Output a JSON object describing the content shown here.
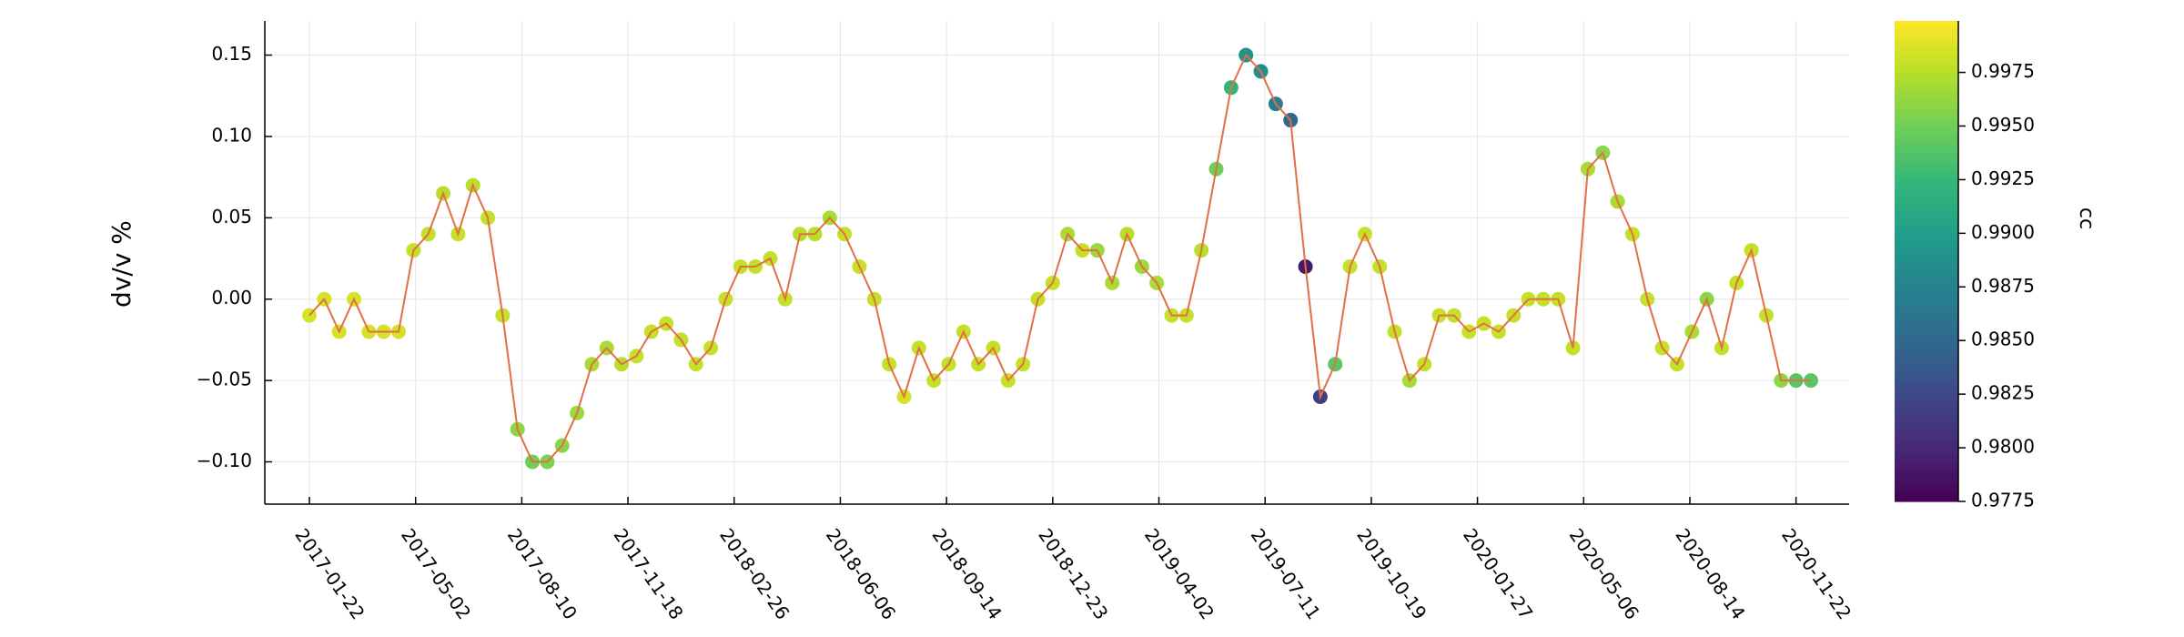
{
  "chart_data": {
    "type": "scatter",
    "ylabel": "dv/v %",
    "colorbar_label": "cc",
    "colormap": "viridis",
    "line_color": "#e26f46",
    "grid": true,
    "x": [
      "2017-01-22",
      "2017-02-05",
      "2017-02-19",
      "2017-03-05",
      "2017-03-19",
      "2017-04-02",
      "2017-04-16",
      "2017-04-30",
      "2017-05-14",
      "2017-05-28",
      "2017-06-11",
      "2017-06-25",
      "2017-07-09",
      "2017-07-23",
      "2017-08-06",
      "2017-08-20",
      "2017-09-03",
      "2017-09-17",
      "2017-10-01",
      "2017-10-15",
      "2017-10-29",
      "2017-11-12",
      "2017-11-26",
      "2017-12-10",
      "2017-12-24",
      "2018-01-07",
      "2018-01-21",
      "2018-02-04",
      "2018-02-18",
      "2018-03-04",
      "2018-03-18",
      "2018-04-01",
      "2018-04-15",
      "2018-04-29",
      "2018-05-13",
      "2018-05-27",
      "2018-06-10",
      "2018-06-24",
      "2018-07-08",
      "2018-07-22",
      "2018-08-05",
      "2018-08-19",
      "2018-09-02",
      "2018-09-16",
      "2018-09-30",
      "2018-10-14",
      "2018-10-28",
      "2018-11-11",
      "2018-11-25",
      "2018-12-09",
      "2018-12-23",
      "2019-01-06",
      "2019-01-20",
      "2019-02-03",
      "2019-02-17",
      "2019-03-03",
      "2019-03-17",
      "2019-03-31",
      "2019-04-14",
      "2019-04-28",
      "2019-05-12",
      "2019-05-26",
      "2019-06-09",
      "2019-06-23",
      "2019-07-07",
      "2019-07-21",
      "2019-08-04",
      "2019-08-18",
      "2019-09-01",
      "2019-09-15",
      "2019-09-29",
      "2019-10-13",
      "2019-10-27",
      "2019-11-10",
      "2019-11-24",
      "2019-12-08",
      "2019-12-22",
      "2020-01-05",
      "2020-01-19",
      "2020-02-02",
      "2020-02-16",
      "2020-03-01",
      "2020-03-15",
      "2020-03-29",
      "2020-04-12",
      "2020-04-26",
      "2020-05-10",
      "2020-05-24",
      "2020-06-07",
      "2020-06-21",
      "2020-07-05",
      "2020-07-19",
      "2020-08-02",
      "2020-08-16",
      "2020-08-30",
      "2020-09-13",
      "2020-09-27",
      "2020-10-11",
      "2020-10-25",
      "2020-11-08",
      "2020-11-22",
      "2020-12-06"
    ],
    "values": [
      -0.01,
      0.0,
      -0.02,
      0.0,
      -0.02,
      -0.02,
      -0.02,
      0.03,
      0.04,
      0.065,
      0.04,
      0.07,
      0.05,
      -0.01,
      -0.08,
      -0.1,
      -0.1,
      -0.09,
      -0.07,
      -0.04,
      -0.03,
      -0.04,
      -0.035,
      -0.02,
      -0.015,
      -0.025,
      -0.04,
      -0.03,
      0.0,
      0.02,
      0.02,
      0.025,
      0.0,
      0.04,
      0.04,
      0.05,
      0.04,
      0.02,
      0.0,
      -0.04,
      -0.06,
      -0.03,
      -0.05,
      -0.04,
      -0.02,
      -0.04,
      -0.03,
      -0.05,
      -0.04,
      0.0,
      0.01,
      0.04,
      0.03,
      0.03,
      0.01,
      0.04,
      0.02,
      0.01,
      -0.01,
      -0.01,
      0.03,
      0.08,
      0.13,
      0.15,
      0.14,
      0.12,
      0.11,
      0.02,
      -0.06,
      -0.04,
      0.02,
      0.04,
      0.02,
      -0.02,
      -0.05,
      -0.04,
      -0.01,
      -0.01,
      -0.02,
      -0.015,
      -0.02,
      -0.01,
      0.0,
      0.0,
      0.0,
      -0.03,
      0.08,
      0.09,
      0.06,
      0.04,
      0.0,
      -0.03,
      -0.04,
      -0.02,
      0.0,
      -0.03,
      0.01,
      0.03,
      -0.01,
      -0.05,
      -0.05,
      -0.05
    ],
    "cc": [
      0.9985,
      0.9985,
      0.9985,
      0.9985,
      0.9985,
      0.9985,
      0.9985,
      0.998,
      0.998,
      0.9975,
      0.998,
      0.9975,
      0.998,
      0.998,
      0.996,
      0.995,
      0.9955,
      0.996,
      0.9965,
      0.997,
      0.997,
      0.9975,
      0.998,
      0.998,
      0.998,
      0.998,
      0.998,
      0.998,
      0.998,
      0.998,
      0.998,
      0.998,
      0.998,
      0.9975,
      0.9975,
      0.997,
      0.998,
      0.998,
      0.998,
      0.998,
      0.9985,
      0.998,
      0.998,
      0.998,
      0.998,
      0.998,
      0.998,
      0.998,
      0.998,
      0.998,
      0.998,
      0.997,
      0.998,
      0.9965,
      0.997,
      0.9975,
      0.9965,
      0.997,
      0.998,
      0.998,
      0.9975,
      0.995,
      0.992,
      0.989,
      0.9885,
      0.987,
      0.985,
      0.979,
      0.9815,
      0.994,
      0.998,
      0.998,
      0.998,
      0.998,
      0.997,
      0.998,
      0.998,
      0.998,
      0.998,
      0.998,
      0.998,
      0.998,
      0.998,
      0.998,
      0.998,
      0.998,
      0.997,
      0.996,
      0.997,
      0.998,
      0.998,
      0.998,
      0.998,
      0.997,
      0.996,
      0.998,
      0.998,
      0.998,
      0.998,
      0.996,
      0.994,
      0.994
    ],
    "xlim": [
      "2016-12-11",
      "2021-01-11"
    ],
    "xticks": [
      "2017-01-22",
      "2017-05-02",
      "2017-08-10",
      "2017-11-18",
      "2018-02-26",
      "2018-06-06",
      "2018-09-14",
      "2018-12-23",
      "2019-04-02",
      "2019-07-11",
      "2019-10-19",
      "2020-01-27",
      "2020-05-06",
      "2020-08-14",
      "2020-11-22"
    ],
    "ylim": [
      -0.126,
      0.171
    ],
    "yticks": [
      {
        "value": -0.1,
        "label": "−0.10"
      },
      {
        "value": -0.05,
        "label": "−0.05"
      },
      {
        "value": 0,
        "label": "0.00"
      },
      {
        "value": 0.05,
        "label": "0.05"
      },
      {
        "value": 0.1,
        "label": "0.10"
      },
      {
        "value": 0.15,
        "label": "0.15"
      }
    ],
    "clim": [
      0.9775,
      0.9999
    ],
    "cticks": [
      {
        "value": 0.9775,
        "label": "0.9775"
      },
      {
        "value": 0.98,
        "label": "0.9800"
      },
      0.9825,
      {
        "value": 0.985,
        "label": "0.9850"
      },
      0.9875,
      {
        "value": 0.99,
        "label": "0.9900"
      },
      0.9925,
      {
        "value": 0.995,
        "label": "0.9950"
      },
      0.9975
    ]
  }
}
